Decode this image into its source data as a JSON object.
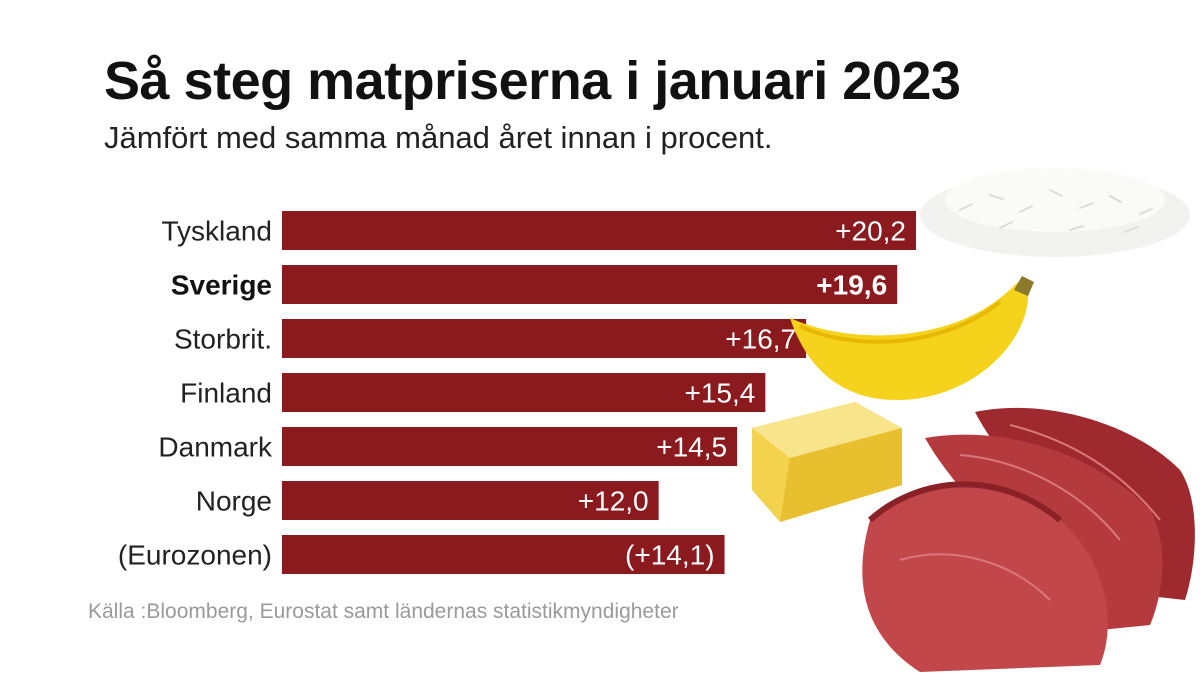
{
  "colors": {
    "bar": "#8b1a1f",
    "highlight_text": "#111111"
  },
  "chart_data": {
    "type": "bar",
    "orientation": "horizontal",
    "title": "Så steg matpriserna i januari 2023",
    "subtitle": "Jämfört med samma månad året innan i procent.",
    "categories": [
      "Tyskland",
      "Sverige",
      "Storbrit.",
      "Finland",
      "Danmark",
      "Norge",
      "(Eurozonen)"
    ],
    "values": [
      20.2,
      19.6,
      16.7,
      15.4,
      14.5,
      12.0,
      14.1
    ],
    "value_labels": [
      "+20,2",
      "+19,6",
      "+16,7",
      "+15,4",
      "+14,5",
      "+12,0",
      "(+14,1)"
    ],
    "highlight_category": "Sverige",
    "xlim": [
      0,
      20.2
    ],
    "grid": false,
    "legend": "none",
    "source": "Källa :Bloomberg, Eurostat samt ländernas statistikmyndigheter"
  },
  "illustrations": [
    "rice-icon",
    "banana-icon",
    "butter-icon",
    "meat-icon"
  ]
}
